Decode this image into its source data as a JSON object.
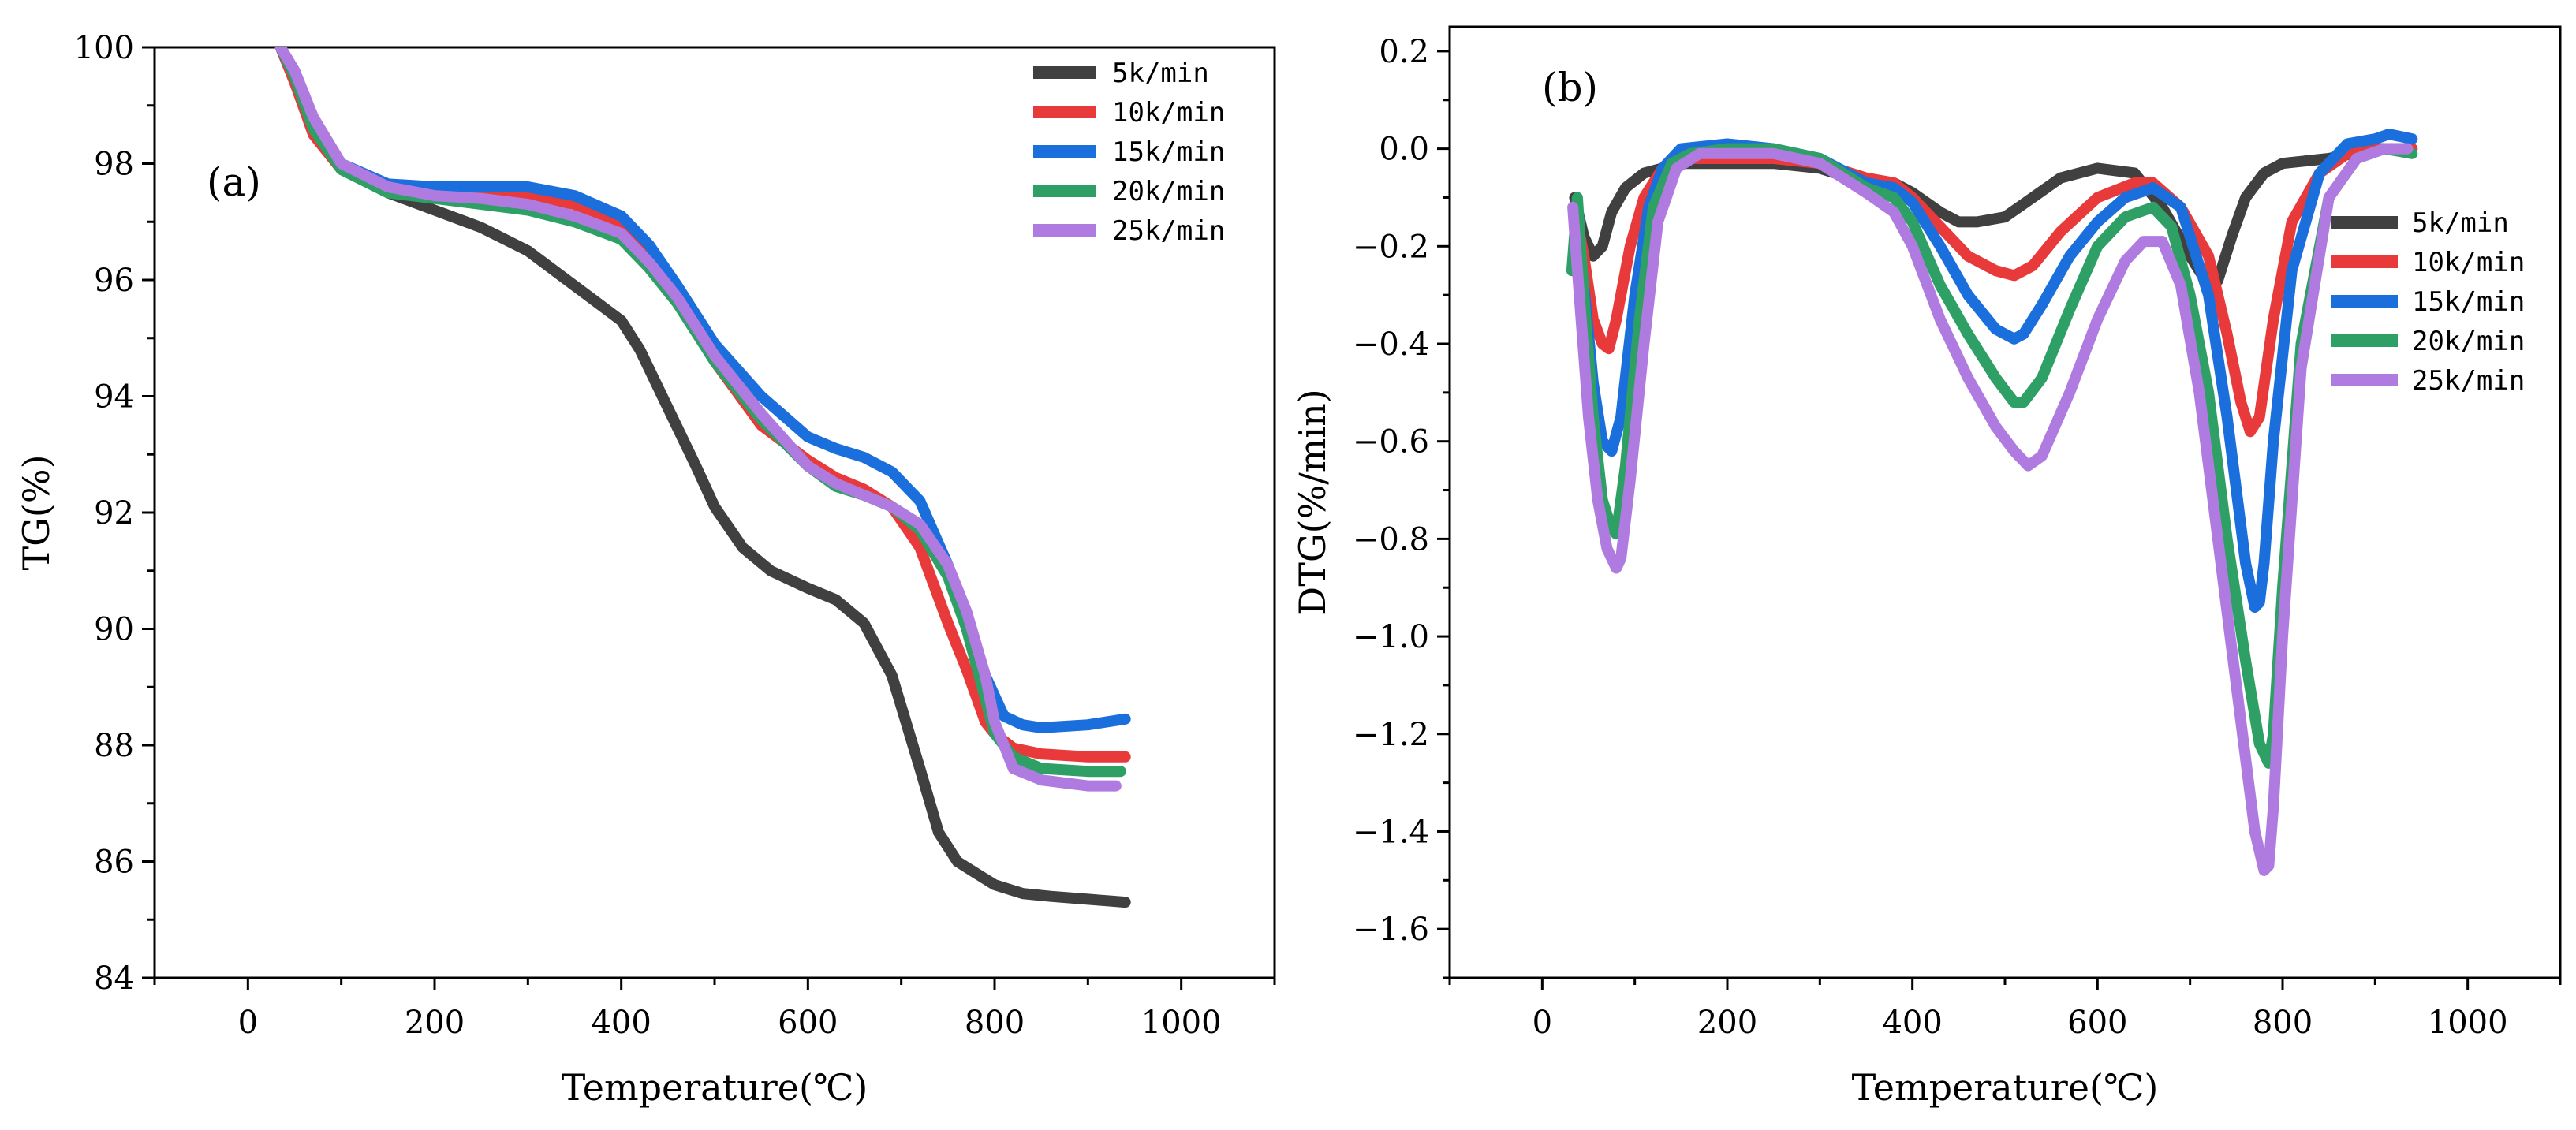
{
  "chart_data": [
    {
      "type": "line",
      "panel_label": "(a)",
      "xlabel": "Temperature(℃)",
      "ylabel": "TG(%)",
      "xlim": [
        -100,
        1100
      ],
      "ylim": [
        84,
        100
      ],
      "xticks": [
        0,
        200,
        400,
        600,
        800,
        1000
      ],
      "yticks": [
        84,
        86,
        88,
        90,
        92,
        94,
        96,
        98,
        100
      ],
      "legend_position": "top-right",
      "series": [
        {
          "name": "5k/min",
          "color": "#404040",
          "x": [
            35,
            50,
            70,
            100,
            150,
            200,
            250,
            300,
            350,
            400,
            420,
            450,
            480,
            500,
            530,
            560,
            600,
            630,
            660,
            690,
            720,
            740,
            760,
            780,
            800,
            830,
            860,
            900,
            940
          ],
          "y": [
            100,
            99.4,
            98.6,
            97.9,
            97.5,
            97.2,
            96.9,
            96.5,
            95.9,
            95.3,
            94.8,
            93.8,
            92.8,
            92.1,
            91.4,
            91.0,
            90.7,
            90.5,
            90.1,
            89.2,
            87.6,
            86.5,
            86.0,
            85.8,
            85.6,
            85.45,
            85.4,
            85.35,
            85.3
          ]
        },
        {
          "name": "10k/min",
          "color": "#e83a3a",
          "x": [
            35,
            50,
            70,
            100,
            150,
            200,
            250,
            300,
            350,
            400,
            430,
            460,
            500,
            550,
            600,
            630,
            660,
            690,
            720,
            750,
            770,
            790,
            800,
            820,
            850,
            900,
            940
          ],
          "y": [
            100,
            99.4,
            98.5,
            97.9,
            97.6,
            97.55,
            97.5,
            97.45,
            97.3,
            96.9,
            96.4,
            95.7,
            94.6,
            93.5,
            92.9,
            92.6,
            92.4,
            92.1,
            91.4,
            90.1,
            89.3,
            88.4,
            88.2,
            87.95,
            87.85,
            87.8,
            87.8
          ]
        },
        {
          "name": "15k/min",
          "color": "#1a6fdc",
          "x": [
            35,
            50,
            70,
            100,
            150,
            200,
            250,
            300,
            350,
            400,
            430,
            460,
            500,
            550,
            600,
            630,
            660,
            690,
            720,
            750,
            770,
            790,
            810,
            830,
            850,
            900,
            940
          ],
          "y": [
            100,
            99.5,
            98.6,
            98.0,
            97.65,
            97.6,
            97.6,
            97.6,
            97.45,
            97.1,
            96.6,
            95.9,
            94.9,
            94.0,
            93.3,
            93.1,
            92.95,
            92.7,
            92.2,
            91.1,
            90.2,
            89.2,
            88.5,
            88.35,
            88.3,
            88.35,
            88.45
          ]
        },
        {
          "name": "20k/min",
          "color": "#2ea065",
          "x": [
            35,
            50,
            70,
            100,
            150,
            200,
            250,
            300,
            350,
            400,
            430,
            460,
            500,
            550,
            600,
            630,
            660,
            690,
            720,
            750,
            770,
            790,
            800,
            820,
            850,
            900,
            935
          ],
          "y": [
            100,
            99.5,
            98.6,
            97.9,
            97.5,
            97.4,
            97.3,
            97.2,
            97.0,
            96.7,
            96.2,
            95.6,
            94.6,
            93.6,
            92.8,
            92.45,
            92.3,
            92.1,
            91.7,
            90.9,
            90.0,
            88.8,
            88.2,
            87.8,
            87.6,
            87.55,
            87.55
          ]
        },
        {
          "name": "25k/min",
          "color": "#b07be0",
          "x": [
            35,
            50,
            70,
            100,
            150,
            200,
            250,
            300,
            350,
            400,
            430,
            460,
            500,
            550,
            600,
            630,
            660,
            690,
            720,
            750,
            770,
            790,
            800,
            820,
            850,
            900,
            930
          ],
          "y": [
            100,
            99.6,
            98.8,
            98.0,
            97.6,
            97.45,
            97.4,
            97.3,
            97.1,
            96.8,
            96.3,
            95.7,
            94.7,
            93.7,
            92.8,
            92.5,
            92.3,
            92.1,
            91.8,
            91.1,
            90.3,
            89.2,
            88.4,
            87.6,
            87.4,
            87.3,
            87.3
          ]
        }
      ]
    },
    {
      "type": "line",
      "panel_label": "(b)",
      "xlabel": "Temperature(℃)",
      "ylabel": "DTG(%/min)",
      "xlim": [
        -100,
        1100
      ],
      "ylim": [
        -1.7,
        0.25
      ],
      "xticks": [
        0,
        200,
        400,
        600,
        800,
        1000
      ],
      "yticks": [
        0.2,
        0.0,
        -0.2,
        -0.4,
        -0.6,
        -0.8,
        -1.0,
        -1.2,
        -1.4,
        -1.6
      ],
      "ytick_labels": [
        "0.2",
        "0.0",
        "−0.2",
        "−0.4",
        "−0.6",
        "−0.8",
        "−1.0",
        "−1.2",
        "−1.4",
        "−1.6"
      ],
      "legend_position": "right",
      "series": [
        {
          "name": "5k/min",
          "color": "#404040",
          "x": [
            35,
            45,
            55,
            65,
            75,
            90,
            110,
            150,
            200,
            250,
            300,
            350,
            380,
            400,
            430,
            450,
            470,
            500,
            530,
            560,
            600,
            640,
            670,
            700,
            720,
            730,
            745,
            760,
            780,
            800,
            850,
            900,
            930
          ],
          "y": [
            -0.1,
            -0.18,
            -0.22,
            -0.2,
            -0.13,
            -0.08,
            -0.05,
            -0.03,
            -0.03,
            -0.03,
            -0.04,
            -0.07,
            -0.07,
            -0.09,
            -0.13,
            -0.15,
            -0.15,
            -0.14,
            -0.1,
            -0.06,
            -0.04,
            -0.05,
            -0.12,
            -0.22,
            -0.28,
            -0.27,
            -0.18,
            -0.1,
            -0.05,
            -0.03,
            -0.02,
            0.0,
            0.0
          ]
        },
        {
          "name": "10k/min",
          "color": "#e83a3a",
          "x": [
            35,
            45,
            55,
            65,
            72,
            80,
            95,
            110,
            130,
            150,
            200,
            250,
            300,
            350,
            380,
            400,
            430,
            460,
            490,
            510,
            530,
            560,
            600,
            640,
            660,
            690,
            720,
            740,
            755,
            765,
            775,
            790,
            810,
            840,
            870,
            900,
            940
          ],
          "y": [
            -0.12,
            -0.22,
            -0.35,
            -0.4,
            -0.41,
            -0.35,
            -0.2,
            -0.1,
            -0.04,
            -0.02,
            -0.02,
            -0.02,
            -0.03,
            -0.06,
            -0.07,
            -0.1,
            -0.16,
            -0.22,
            -0.25,
            -0.26,
            -0.24,
            -0.17,
            -0.1,
            -0.07,
            -0.07,
            -0.12,
            -0.22,
            -0.38,
            -0.52,
            -0.58,
            -0.55,
            -0.35,
            -0.15,
            -0.05,
            -0.01,
            0.0,
            0.0
          ]
        },
        {
          "name": "15k/min",
          "color": "#1a6fdc",
          "x": [
            35,
            45,
            55,
            65,
            75,
            85,
            100,
            115,
            130,
            150,
            200,
            250,
            300,
            350,
            380,
            400,
            430,
            460,
            490,
            510,
            520,
            540,
            570,
            600,
            630,
            660,
            690,
            720,
            740,
            760,
            770,
            775,
            780,
            790,
            810,
            840,
            870,
            900,
            915,
            940
          ],
          "y": [
            -0.12,
            -0.28,
            -0.48,
            -0.6,
            -0.62,
            -0.55,
            -0.3,
            -0.12,
            -0.04,
            0.0,
            0.01,
            0.0,
            -0.02,
            -0.07,
            -0.08,
            -0.11,
            -0.2,
            -0.3,
            -0.37,
            -0.39,
            -0.38,
            -0.32,
            -0.22,
            -0.15,
            -0.1,
            -0.08,
            -0.12,
            -0.3,
            -0.55,
            -0.85,
            -0.94,
            -0.93,
            -0.85,
            -0.6,
            -0.25,
            -0.05,
            0.01,
            0.02,
            0.03,
            0.02
          ]
        },
        {
          "name": "20k/min",
          "color": "#2ea065",
          "x": [
            32,
            38,
            45,
            55,
            65,
            75,
            80,
            90,
            105,
            120,
            140,
            160,
            200,
            250,
            300,
            350,
            380,
            400,
            430,
            460,
            490,
            510,
            520,
            540,
            570,
            600,
            630,
            660,
            680,
            700,
            720,
            740,
            760,
            775,
            785,
            790,
            800,
            820,
            850,
            880,
            910,
            940
          ],
          "y": [
            -0.25,
            -0.1,
            -0.3,
            -0.55,
            -0.72,
            -0.78,
            -0.79,
            -0.65,
            -0.35,
            -0.12,
            -0.03,
            -0.01,
            0.0,
            0.0,
            -0.02,
            -0.08,
            -0.1,
            -0.15,
            -0.28,
            -0.38,
            -0.47,
            -0.52,
            -0.52,
            -0.47,
            -0.33,
            -0.2,
            -0.14,
            -0.12,
            -0.16,
            -0.3,
            -0.5,
            -0.8,
            -1.05,
            -1.22,
            -1.26,
            -1.2,
            -0.9,
            -0.4,
            -0.1,
            -0.02,
            0.0,
            -0.01
          ]
        },
        {
          "name": "25k/min",
          "color": "#b07be0",
          "x": [
            33,
            40,
            50,
            60,
            70,
            80,
            85,
            95,
            110,
            125,
            145,
            170,
            200,
            250,
            300,
            350,
            380,
            400,
            430,
            460,
            490,
            510,
            525,
            540,
            570,
            600,
            630,
            650,
            670,
            690,
            710,
            730,
            750,
            770,
            780,
            785,
            790,
            800,
            820,
            850,
            880,
            910,
            935
          ],
          "y": [
            -0.12,
            -0.3,
            -0.55,
            -0.72,
            -0.82,
            -0.86,
            -0.84,
            -0.68,
            -0.4,
            -0.15,
            -0.04,
            -0.01,
            -0.01,
            -0.01,
            -0.03,
            -0.09,
            -0.13,
            -0.2,
            -0.35,
            -0.47,
            -0.57,
            -0.62,
            -0.65,
            -0.63,
            -0.5,
            -0.35,
            -0.23,
            -0.19,
            -0.19,
            -0.28,
            -0.5,
            -0.8,
            -1.1,
            -1.4,
            -1.48,
            -1.47,
            -1.35,
            -1.0,
            -0.45,
            -0.1,
            -0.02,
            0.0,
            0.0
          ]
        }
      ]
    }
  ]
}
